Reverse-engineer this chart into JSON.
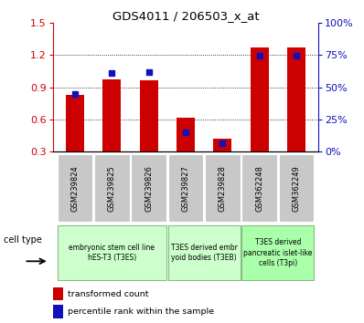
{
  "title": "GDS4011 / 206503_x_at",
  "samples": [
    "GSM239824",
    "GSM239825",
    "GSM239826",
    "GSM239827",
    "GSM239828",
    "GSM362248",
    "GSM362249"
  ],
  "transformed_count": [
    0.83,
    0.97,
    0.96,
    0.62,
    0.42,
    1.27,
    1.27
  ],
  "percentile_rank": [
    0.84,
    1.03,
    1.04,
    0.48,
    0.38,
    1.19,
    1.19
  ],
  "ylim": [
    0.3,
    1.5
  ],
  "y_ticks": [
    0.3,
    0.6,
    0.9,
    1.2,
    1.5
  ],
  "pct_labels": [
    "0%",
    "25%",
    "50%",
    "75%",
    "100%"
  ],
  "bar_color": "#cc0000",
  "dot_color": "#1111bb",
  "cell_groups": [
    {
      "label": "embryonic stem cell line\nhES-T3 (T3ES)",
      "i0": 0,
      "i1": 2,
      "color": "#ccffcc"
    },
    {
      "label": "T3ES derived embr\nyoid bodies (T3EB)",
      "i0": 3,
      "i1": 4,
      "color": "#ccffcc"
    },
    {
      "label": "T3ES derived\npancreatic islet-like\ncells (T3pi)",
      "i0": 5,
      "i1": 6,
      "color": "#aaffaa"
    }
  ],
  "tick_color_left": "#cc0000",
  "tick_color_right": "#1111bb",
  "bar_width": 0.5,
  "background_color": "#ffffff",
  "cell_type_text": "cell type",
  "legend_items": [
    {
      "label": "transformed count",
      "color": "#cc0000"
    },
    {
      "label": "percentile rank within the sample",
      "color": "#1111bb"
    }
  ]
}
